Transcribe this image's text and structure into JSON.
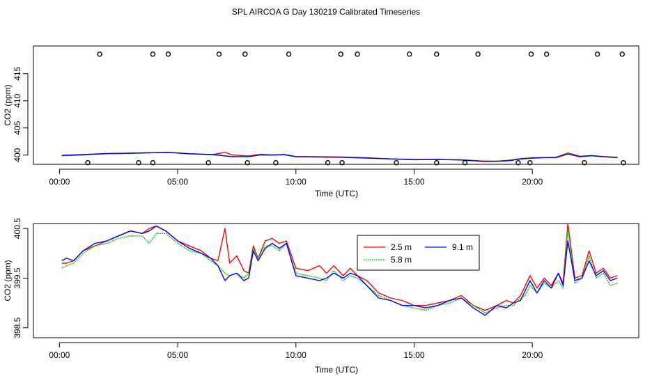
{
  "figure_title": "SPL AIRCOA G  Day 130219  Calibrated Timeseries",
  "colors": {
    "s2_5": "#ff0000",
    "s5_8": "#00cc00",
    "s9_1": "#0000ff",
    "axis": "#000000"
  },
  "chart_data": [
    {
      "type": "line",
      "title": "",
      "xlabel": "Time (UTC)",
      "ylabel": "CO2 (ppm)",
      "xlim": [
        -1.1,
        24.5
      ],
      "ylim": [
        398.3,
        420.1
      ],
      "xticks": [
        0,
        5,
        10,
        15,
        20
      ],
      "xtick_labels": [
        "00:00",
        "05:00",
        "10:00",
        "15:00",
        "20:00"
      ],
      "yticks": [
        400,
        405,
        410,
        415
      ],
      "ytick_labels": [
        "400",
        "405",
        "410",
        "415"
      ],
      "markers": {
        "high_value": 418.6,
        "high_x": [
          1.7,
          3.95,
          4.6,
          6.75,
          7.85,
          9.7,
          11.9,
          12.6,
          14.8,
          15.95,
          17.7,
          19.95,
          20.6,
          22.75,
          23.8
        ],
        "low_value": 398.6,
        "low_x": [
          1.2,
          3.35,
          3.95,
          6.3,
          7.95,
          9.15,
          11.35,
          11.95,
          14.25,
          15.95,
          17.15,
          19.4,
          19.9,
          22.2,
          23.85
        ]
      },
      "series": [
        {
          "name": "2.5 m",
          "x": [
            0.1,
            1.0,
            2.0,
            3.0,
            4.0,
            4.6,
            5.5,
            6.5,
            7.0,
            7.3,
            8.0,
            8.5,
            9.0,
            9.5,
            10.0,
            11.0,
            12.0,
            13.0,
            14.0,
            15.0,
            16.0,
            17.0,
            18.0,
            18.5,
            19.0,
            19.5,
            20.0,
            20.5,
            21.0,
            21.5,
            22.0,
            22.5,
            23.0,
            23.6
          ],
          "values": [
            399.9,
            400.05,
            400.25,
            400.35,
            400.45,
            400.5,
            400.25,
            400.1,
            400.5,
            400.05,
            399.85,
            400.15,
            400.05,
            400.1,
            399.75,
            399.7,
            399.65,
            399.5,
            399.3,
            399.2,
            399.2,
            399.15,
            398.9,
            398.9,
            399.05,
            399.35,
            399.5,
            399.55,
            399.6,
            400.4,
            399.8,
            399.9,
            399.75,
            399.6
          ]
        },
        {
          "name": "5.8 m",
          "x": [
            0.1,
            1.0,
            2.0,
            3.0,
            4.0,
            4.6,
            5.5,
            6.5,
            7.0,
            7.3,
            8.0,
            8.5,
            9.0,
            9.5,
            10.0,
            11.0,
            12.0,
            13.0,
            14.0,
            15.0,
            16.0,
            17.0,
            18.0,
            18.5,
            19.0,
            19.5,
            20.0,
            20.5,
            21.0,
            21.5,
            22.0,
            22.5,
            23.0,
            23.6
          ],
          "values": [
            399.85,
            400.0,
            400.25,
            400.3,
            400.4,
            400.45,
            400.2,
            400.05,
            399.9,
            399.75,
            399.75,
            400.05,
            400.0,
            400.05,
            399.7,
            399.65,
            399.6,
            399.45,
            399.3,
            399.15,
            399.2,
            399.1,
            398.85,
            398.9,
            398.95,
            399.25,
            399.4,
            399.5,
            399.55,
            400.3,
            399.7,
            399.85,
            399.7,
            399.5
          ]
        },
        {
          "name": "9.1 m",
          "x": [
            0.1,
            1.0,
            2.0,
            3.0,
            4.0,
            4.6,
            5.5,
            6.5,
            7.0,
            7.3,
            8.0,
            8.5,
            9.0,
            9.5,
            10.0,
            11.0,
            12.0,
            13.0,
            14.0,
            15.0,
            16.0,
            17.0,
            18.0,
            18.5,
            19.0,
            19.5,
            20.0,
            20.5,
            21.0,
            21.5,
            22.0,
            22.5,
            23.0,
            23.6
          ],
          "values": [
            399.95,
            400.1,
            400.3,
            400.35,
            400.45,
            400.5,
            400.25,
            400.1,
            399.85,
            399.7,
            399.7,
            400.05,
            400.0,
            400.1,
            399.7,
            399.65,
            399.6,
            399.45,
            399.3,
            399.15,
            399.2,
            399.1,
            398.8,
            398.85,
            398.95,
            399.3,
            399.45,
            399.55,
            399.55,
            400.2,
            399.7,
            399.9,
            399.7,
            399.55
          ]
        }
      ]
    },
    {
      "type": "line",
      "title": "",
      "xlabel": "Time (UTC)",
      "ylabel": "CO2 (ppm)",
      "xlim": [
        -1.1,
        24.5
      ],
      "ylim": [
        398.3,
        400.6
      ],
      "xticks": [
        0,
        5,
        10,
        15,
        20
      ],
      "xtick_labels": [
        "00:00",
        "05:00",
        "10:00",
        "15:00",
        "20:00"
      ],
      "yticks": [
        398.5,
        399.5,
        400.5
      ],
      "ytick_labels": [
        "398.5",
        "399.5",
        "400.5"
      ],
      "legend_position": "top-center",
      "series": [
        {
          "name": "2.5 m",
          "x": [
            0.1,
            0.3,
            0.6,
            1.0,
            1.5,
            2.0,
            2.5,
            3.0,
            3.5,
            3.8,
            4.1,
            4.5,
            5.0,
            5.5,
            6.0,
            6.4,
            6.7,
            7.0,
            7.2,
            7.5,
            7.8,
            8.0,
            8.2,
            8.4,
            8.7,
            9.0,
            9.3,
            9.6,
            10.0,
            10.5,
            11.0,
            11.3,
            11.6,
            12.0,
            12.3,
            12.6,
            13.0,
            13.5,
            14.0,
            14.5,
            15.0,
            15.5,
            16.0,
            16.5,
            17.0,
            17.5,
            18.0,
            18.5,
            18.9,
            19.2,
            19.5,
            19.7,
            19.9,
            20.2,
            20.5,
            20.8,
            21.1,
            21.3,
            21.5,
            21.8,
            22.1,
            22.4,
            22.7,
            23.0,
            23.3,
            23.6
          ],
          "values": [
            399.8,
            399.8,
            399.85,
            400.05,
            400.15,
            400.25,
            400.35,
            400.45,
            400.4,
            400.5,
            400.55,
            400.45,
            400.25,
            400.15,
            400.05,
            399.9,
            399.85,
            400.5,
            399.8,
            399.95,
            399.65,
            399.6,
            400.15,
            399.9,
            400.25,
            400.3,
            400.2,
            400.25,
            399.7,
            399.65,
            399.75,
            399.6,
            399.75,
            399.55,
            399.7,
            399.55,
            399.45,
            399.2,
            399.1,
            399.05,
            398.95,
            398.95,
            399.0,
            399.05,
            399.15,
            398.95,
            398.85,
            398.95,
            399.05,
            399.0,
            399.15,
            399.35,
            399.55,
            399.3,
            399.5,
            399.35,
            399.6,
            399.4,
            400.6,
            399.5,
            399.55,
            400.05,
            399.6,
            399.7,
            399.5,
            399.55
          ]
        },
        {
          "name": "5.8 m",
          "x": [
            0.1,
            0.3,
            0.6,
            1.0,
            1.5,
            2.0,
            2.5,
            3.0,
            3.5,
            3.8,
            4.1,
            4.5,
            5.0,
            5.5,
            6.0,
            6.4,
            6.7,
            7.0,
            7.2,
            7.5,
            7.8,
            8.0,
            8.2,
            8.4,
            8.7,
            9.0,
            9.3,
            9.6,
            10.0,
            10.5,
            11.0,
            11.3,
            11.6,
            12.0,
            12.3,
            12.6,
            13.0,
            13.5,
            14.0,
            14.5,
            15.0,
            15.5,
            16.0,
            16.5,
            17.0,
            17.5,
            18.0,
            18.5,
            18.9,
            19.2,
            19.5,
            19.7,
            19.9,
            20.2,
            20.5,
            20.8,
            21.1,
            21.3,
            21.5,
            21.8,
            22.1,
            22.4,
            22.7,
            23.0,
            23.3,
            23.6
          ],
          "values": [
            399.7,
            399.75,
            399.8,
            400.0,
            400.15,
            400.2,
            400.3,
            400.35,
            400.35,
            400.2,
            400.4,
            400.4,
            400.2,
            400.05,
            400.0,
            399.85,
            399.75,
            399.6,
            399.55,
            399.6,
            399.5,
            399.6,
            400.1,
            399.9,
            400.15,
            400.15,
            400.05,
            400.2,
            399.6,
            399.55,
            399.5,
            399.45,
            399.65,
            399.45,
            399.55,
            399.5,
            399.35,
            399.15,
            399.05,
            398.95,
            398.9,
            398.85,
            398.95,
            399.0,
            399.1,
            398.95,
            398.8,
            398.9,
            398.95,
            398.95,
            399.1,
            399.15,
            399.35,
            399.2,
            399.4,
            399.3,
            399.45,
            399.3,
            400.5,
            399.4,
            399.5,
            399.95,
            399.5,
            399.6,
            399.35,
            399.4
          ]
        },
        {
          "name": "9.1 m",
          "x": [
            0.1,
            0.3,
            0.6,
            1.0,
            1.5,
            2.0,
            2.5,
            3.0,
            3.5,
            3.8,
            4.1,
            4.5,
            5.0,
            5.5,
            6.0,
            6.4,
            6.7,
            7.0,
            7.2,
            7.5,
            7.8,
            8.0,
            8.2,
            8.4,
            8.7,
            9.0,
            9.3,
            9.6,
            10.0,
            10.5,
            11.0,
            11.3,
            11.6,
            12.0,
            12.3,
            12.6,
            13.0,
            13.5,
            14.0,
            14.5,
            15.0,
            15.5,
            16.0,
            16.5,
            17.0,
            17.5,
            18.0,
            18.5,
            18.9,
            19.2,
            19.5,
            19.7,
            19.9,
            20.2,
            20.5,
            20.8,
            21.1,
            21.3,
            21.5,
            21.8,
            22.1,
            22.4,
            22.7,
            23.0,
            23.3,
            23.6
          ],
          "values": [
            399.85,
            399.9,
            399.85,
            400.05,
            400.2,
            400.25,
            400.35,
            400.45,
            400.4,
            400.45,
            400.55,
            400.45,
            400.25,
            400.1,
            400.0,
            399.9,
            399.75,
            399.45,
            399.55,
            399.6,
            399.45,
            399.5,
            400.05,
            399.85,
            400.1,
            400.2,
            400.1,
            400.2,
            399.55,
            399.5,
            399.45,
            399.5,
            399.6,
            399.5,
            399.6,
            399.55,
            399.35,
            399.1,
            399.05,
            398.95,
            398.95,
            398.9,
            398.95,
            399.05,
            399.1,
            398.9,
            398.75,
            398.95,
            398.9,
            399.0,
            399.05,
            399.25,
            399.45,
            399.2,
            399.45,
            399.3,
            399.6,
            399.35,
            400.25,
            399.45,
            399.5,
            399.85,
            399.55,
            399.65,
            399.45,
            399.5
          ]
        }
      ]
    }
  ]
}
